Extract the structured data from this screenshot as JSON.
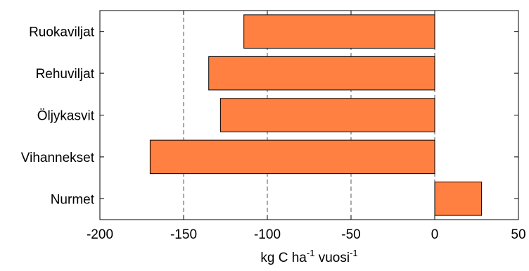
{
  "chart_data": {
    "type": "bar",
    "orientation": "horizontal",
    "categories": [
      "Ruokaviljat",
      "Rehuviljat",
      "Öljykasvit",
      "Vihannekset",
      "Nurmet"
    ],
    "values": [
      -114,
      -135,
      -128,
      -170,
      28
    ],
    "xlim": [
      -200,
      50
    ],
    "xticks": [
      -200,
      -150,
      -100,
      -50,
      0,
      50
    ],
    "xtick_labels": [
      "-200",
      "-150",
      "-100",
      "-50",
      "0",
      "50"
    ],
    "xlabel": {
      "main": "kg C ha",
      "sup1": "-1",
      "mid": " vuosi",
      "sup2": "-1"
    },
    "bar_color": "#FF8040",
    "grid": "vertical dashed at -150, -100, -50, 0"
  }
}
